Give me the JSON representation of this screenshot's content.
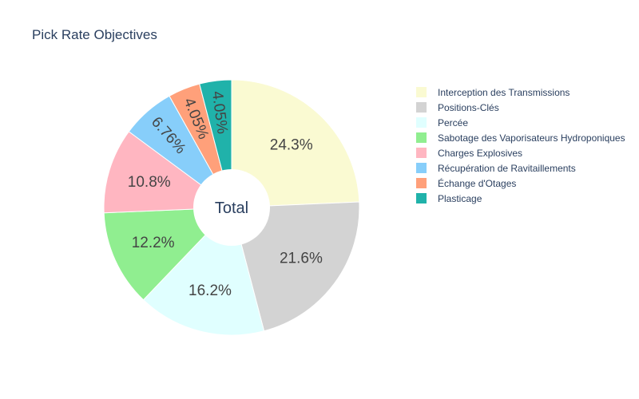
{
  "chart_data": {
    "type": "pie",
    "title": "Pick Rate Objectives",
    "center_label": "Total",
    "hole": true,
    "legend_position": "right",
    "slices": [
      {
        "label": "Interception des Transmissions",
        "percent": 24.3,
        "percent_label": "24.3%",
        "color": "#fafad2"
      },
      {
        "label": "Positions-Clés",
        "percent": 21.6,
        "percent_label": "21.6%",
        "color": "#d3d3d3"
      },
      {
        "label": "Percée",
        "percent": 16.2,
        "percent_label": "16.2%",
        "color": "#e0ffff"
      },
      {
        "label": "Sabotage des Vaporisateurs Hydroponiques",
        "percent": 12.2,
        "percent_label": "12.2%",
        "color": "#90ee90"
      },
      {
        "label": "Charges Explosives",
        "percent": 10.8,
        "percent_label": "10.8%",
        "color": "#ffb6c1"
      },
      {
        "label": "Récupération de Ravitaillements",
        "percent": 6.76,
        "percent_label": "6.76%",
        "color": "#87cefa"
      },
      {
        "label": "Échange d'Otages",
        "percent": 4.05,
        "percent_label": "4.05%",
        "color": "#ffa07a"
      },
      {
        "label": "Plasticage",
        "percent": 4.05,
        "percent_label": "4.05%",
        "color": "#20b2aa"
      }
    ]
  }
}
